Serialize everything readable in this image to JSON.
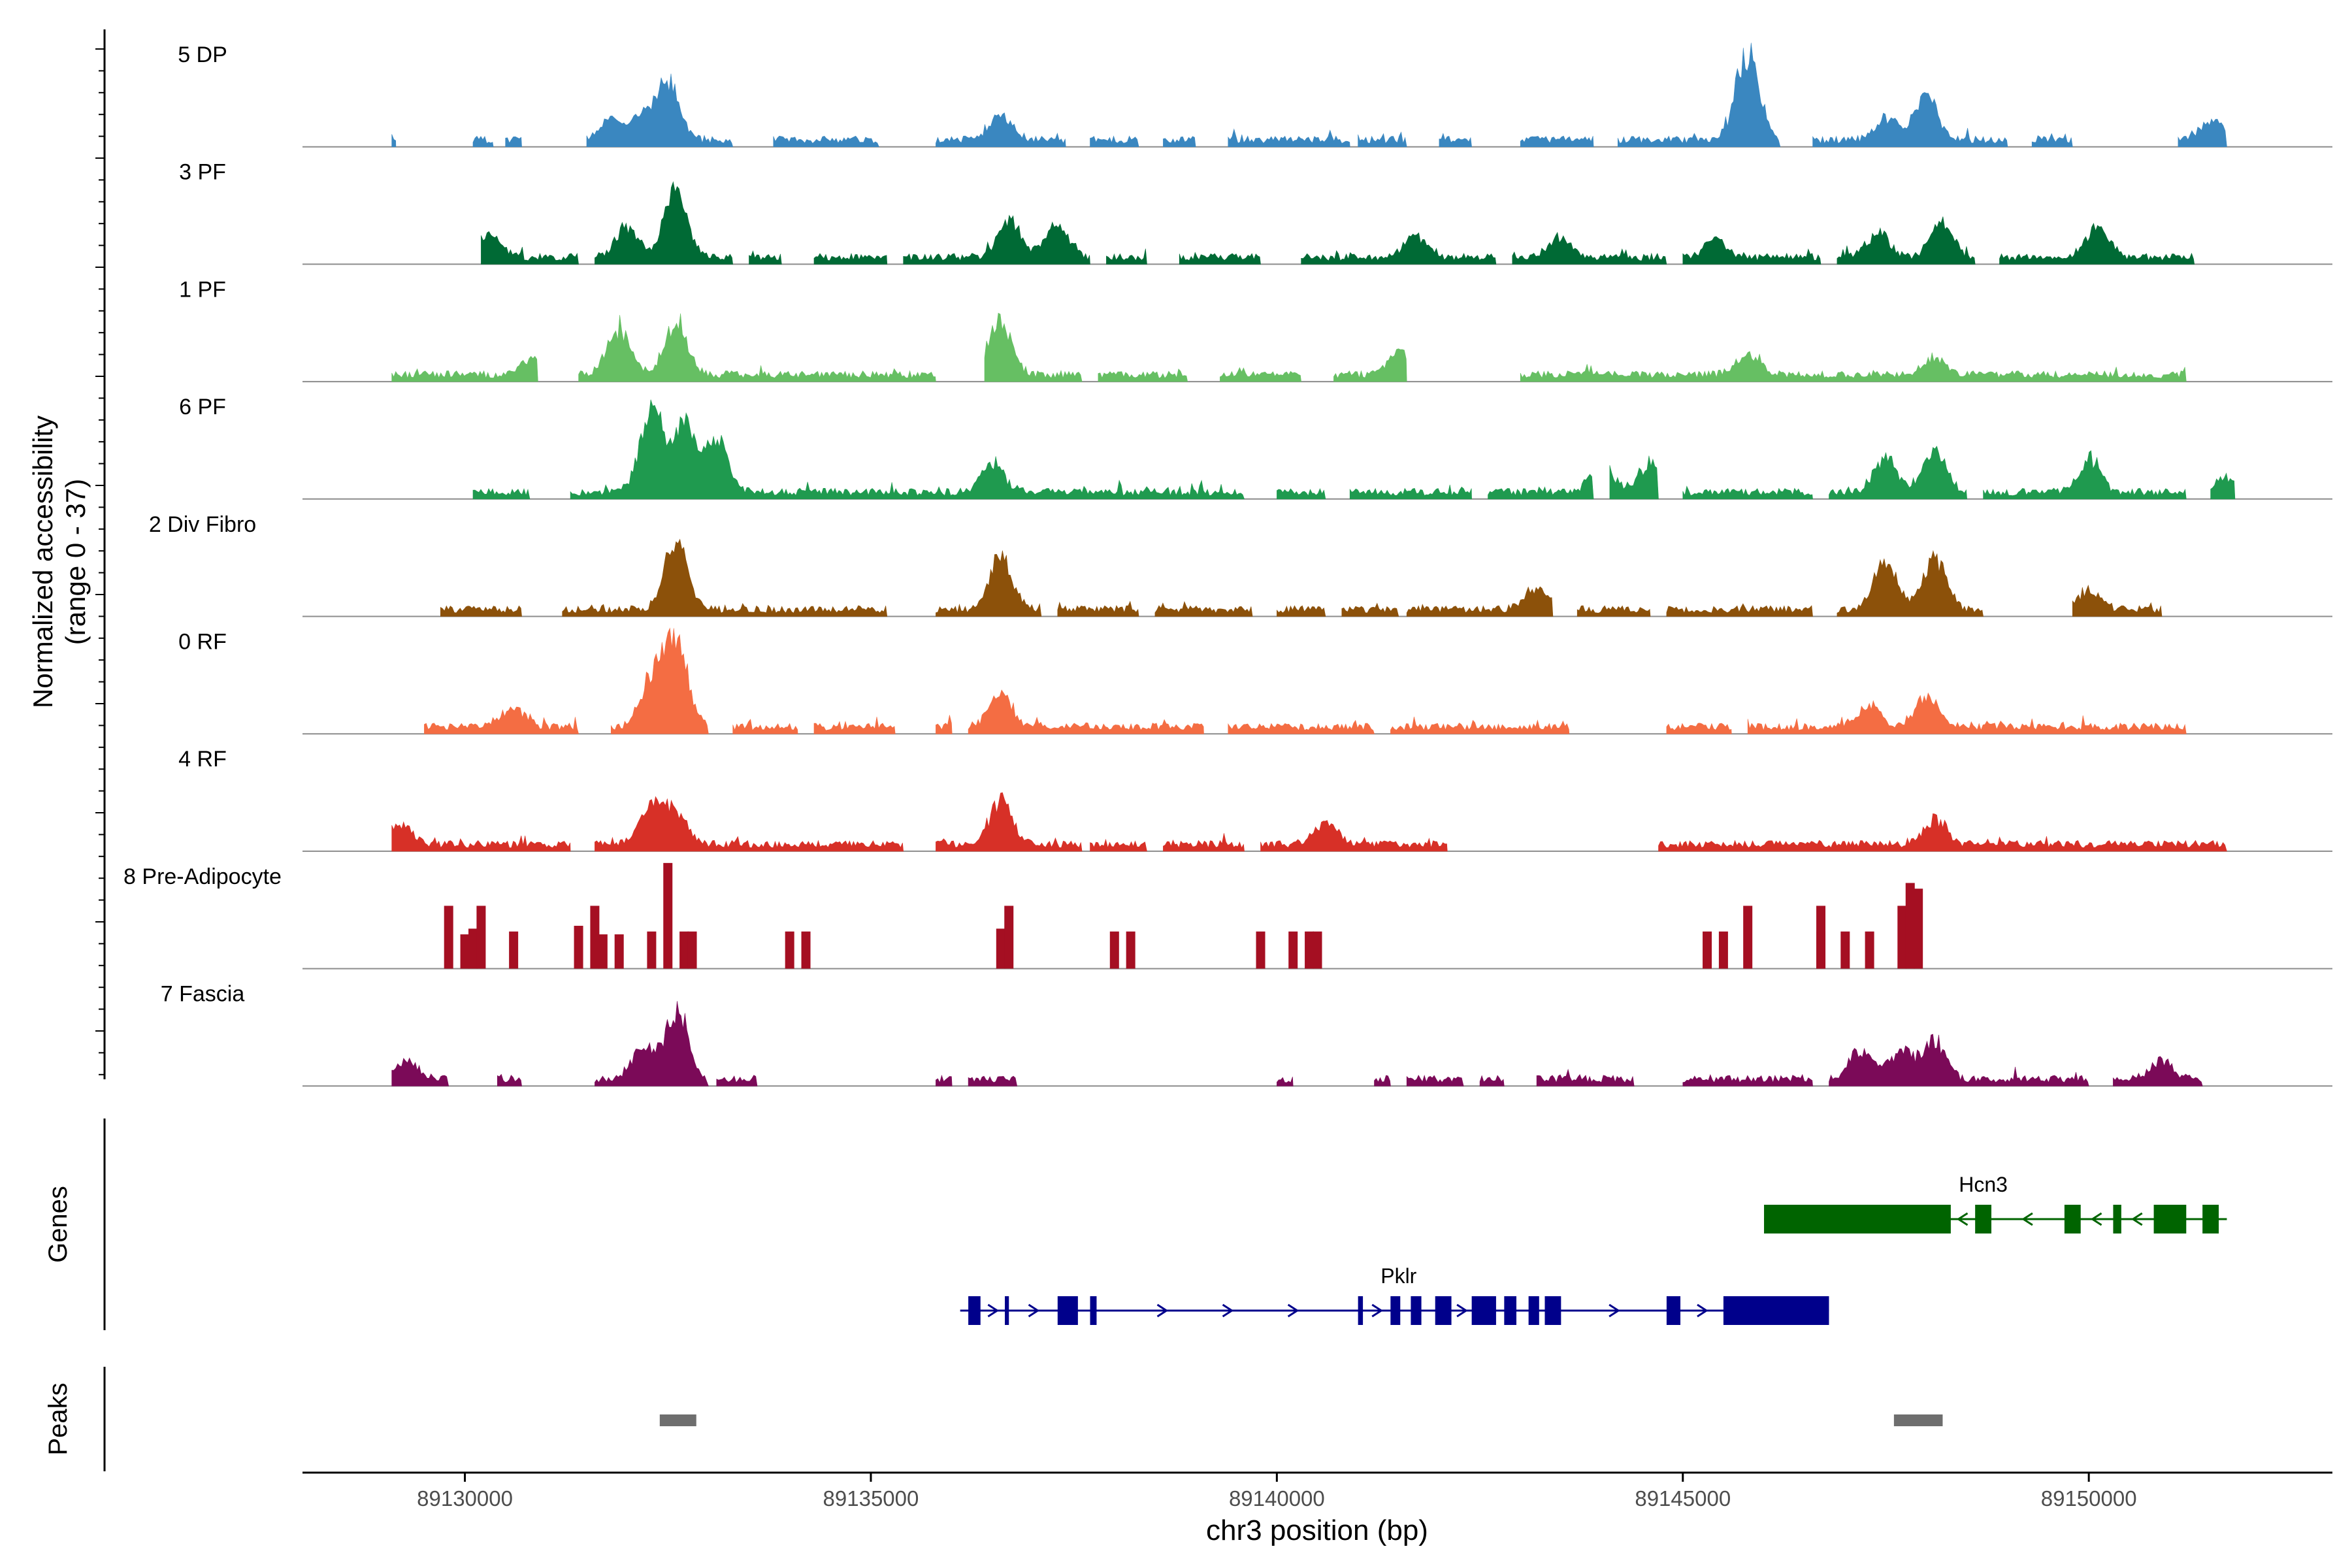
{
  "chart_data": {
    "type": "area",
    "title": "",
    "ylabel_line1": "Normalized accessibility",
    "ylabel_line2": "(range 0 - 37)",
    "xlabel": "chr3 position (bp)",
    "xlim": [
      89128000,
      89153000
    ],
    "xticks": [
      89130000,
      89135000,
      89140000,
      89145000,
      89150000
    ],
    "xtick_labels": [
      "89130000",
      "89135000",
      "89140000",
      "89145000",
      "89150000"
    ],
    "ylim": [
      0,
      37
    ],
    "tracks": [
      {
        "name": "5 DP",
        "color": "#3a87c0",
        "style": "smooth",
        "peaks": [
          [
            89131800,
            9
          ],
          [
            89132200,
            10
          ],
          [
            89132500,
            23
          ],
          [
            89136600,
            11
          ],
          [
            89145800,
            37
          ],
          [
            89147500,
            9
          ],
          [
            89148000,
            18
          ],
          [
            89151500,
            8
          ]
        ],
        "islands": [
          [
            89129100,
            89129150
          ],
          [
            89130100,
            89130350
          ],
          [
            89130500,
            89130700
          ],
          [
            89131500,
            89133300
          ],
          [
            89133800,
            89135100
          ],
          [
            89135800,
            89137400
          ],
          [
            89137700,
            89138300
          ],
          [
            89138600,
            89139000
          ],
          [
            89139400,
            89140900
          ],
          [
            89141000,
            89141600
          ],
          [
            89142000,
            89142400
          ],
          [
            89143000,
            89143900
          ],
          [
            89144200,
            89146200
          ],
          [
            89146600,
            89149000
          ],
          [
            89149300,
            89149800
          ],
          [
            89151100,
            89151700
          ]
        ]
      },
      {
        "name": "3 PF",
        "color": "#006a35",
        "style": "smooth",
        "peaks": [
          [
            89130300,
            10
          ],
          [
            89132000,
            13
          ],
          [
            89132600,
            28
          ],
          [
            89136700,
            15
          ],
          [
            89137300,
            13
          ],
          [
            89141700,
            9
          ],
          [
            89143500,
            8
          ],
          [
            89145400,
            8
          ],
          [
            89147400,
            10
          ],
          [
            89148200,
            14
          ],
          [
            89150100,
            13
          ]
        ],
        "islands": [
          [
            89130200,
            89131400
          ],
          [
            89131600,
            89133300
          ],
          [
            89133500,
            89133900
          ],
          [
            89134300,
            89135200
          ],
          [
            89135400,
            89137700
          ],
          [
            89137900,
            89138400
          ],
          [
            89138800,
            89139800
          ],
          [
            89140300,
            89142700
          ],
          [
            89142900,
            89144800
          ],
          [
            89145000,
            89146700
          ],
          [
            89146900,
            89148600
          ],
          [
            89148900,
            89151300
          ]
        ]
      },
      {
        "name": "1 PF",
        "color": "#66bf63",
        "style": "smooth",
        "peaks": [
          [
            89130800,
            7
          ],
          [
            89131900,
            20
          ],
          [
            89132600,
            22
          ],
          [
            89136600,
            22
          ],
          [
            89141500,
            10
          ],
          [
            89145800,
            9
          ],
          [
            89148100,
            7
          ]
        ],
        "islands": [
          [
            89129100,
            89130900
          ],
          [
            89131400,
            89135800
          ],
          [
            89136400,
            89137600
          ],
          [
            89137800,
            89138900
          ],
          [
            89139300,
            89140300
          ],
          [
            89140700,
            89141600
          ],
          [
            89143000,
            89151200
          ]
        ]
      },
      {
        "name": "6 PF",
        "color": "#1f9a4f",
        "style": "smooth",
        "peaks": [
          [
            89132300,
            33
          ],
          [
            89132700,
            27
          ],
          [
            89133100,
            23
          ],
          [
            89136500,
            12
          ],
          [
            89144000,
            12
          ],
          [
            89144600,
            12
          ],
          [
            89147500,
            15
          ],
          [
            89148100,
            18
          ],
          [
            89150000,
            14
          ],
          [
            89151700,
            6
          ]
        ],
        "islands": [
          [
            89130100,
            89130800
          ],
          [
            89131300,
            89139600
          ],
          [
            89140000,
            89140600
          ],
          [
            89140900,
            89142400
          ],
          [
            89142600,
            89143900
          ],
          [
            89144100,
            89144700
          ],
          [
            89145000,
            89146600
          ],
          [
            89146800,
            89148500
          ],
          [
            89148700,
            89151200
          ],
          [
            89151500,
            89151800
          ]
        ]
      },
      {
        "name": "2 Div Fibro",
        "color": "#8c510a",
        "style": "smooth",
        "peaks": [
          [
            89132600,
            28
          ],
          [
            89136600,
            22
          ],
          [
            89143200,
            9
          ],
          [
            89147500,
            20
          ],
          [
            89148100,
            22
          ],
          [
            89150000,
            8
          ]
        ],
        "islands": [
          [
            89129700,
            89130700
          ],
          [
            89131200,
            89135200
          ],
          [
            89135800,
            89137100
          ],
          [
            89137300,
            89138300
          ],
          [
            89138500,
            89139700
          ],
          [
            89140000,
            89140600
          ],
          [
            89140800,
            89141500
          ],
          [
            89141600,
            89143400
          ],
          [
            89143700,
            89144600
          ],
          [
            89144800,
            89146600
          ],
          [
            89146900,
            89148700
          ],
          [
            89149800,
            89150900
          ]
        ]
      },
      {
        "name": "0 RF",
        "color": "#f46d43",
        "style": "smooth",
        "peaks": [
          [
            89130600,
            8
          ],
          [
            89132300,
            20
          ],
          [
            89132600,
            37
          ],
          [
            89136600,
            14
          ],
          [
            89147300,
            9
          ],
          [
            89148000,
            13
          ]
        ],
        "islands": [
          [
            89129500,
            89131400
          ],
          [
            89131800,
            89133000
          ],
          [
            89133300,
            89134100
          ],
          [
            89134300,
            89135300
          ],
          [
            89135800,
            89136000
          ],
          [
            89136200,
            89139100
          ],
          [
            89139400,
            89141200
          ],
          [
            89141400,
            89143600
          ],
          [
            89144800,
            89145600
          ],
          [
            89145800,
            89151200
          ]
        ]
      },
      {
        "name": "4 RF",
        "color": "#d73027",
        "style": "smooth",
        "peaks": [
          [
            89129200,
            8
          ],
          [
            89132300,
            16
          ],
          [
            89132600,
            13
          ],
          [
            89136600,
            19
          ],
          [
            89140600,
            9
          ],
          [
            89148100,
            10
          ]
        ],
        "islands": [
          [
            89129100,
            89131300
          ],
          [
            89131600,
            89135400
          ],
          [
            89135800,
            89137600
          ],
          [
            89137700,
            89138400
          ],
          [
            89138600,
            89139600
          ],
          [
            89139800,
            89142100
          ],
          [
            89144700,
            89151700
          ]
        ]
      },
      {
        "name": "8 Pre-Adipocyte",
        "color": "#a50f22",
        "style": "bars",
        "bars": [
          [
            89129800,
            22
          ],
          [
            89130000,
            12
          ],
          [
            89130100,
            14
          ],
          [
            89130200,
            22
          ],
          [
            89130600,
            13
          ],
          [
            89131400,
            15
          ],
          [
            89131600,
            22
          ],
          [
            89131700,
            12
          ],
          [
            89131900,
            12
          ],
          [
            89132300,
            13
          ],
          [
            89132500,
            37
          ],
          [
            89132700,
            13
          ],
          [
            89132800,
            13
          ],
          [
            89134000,
            13
          ],
          [
            89134200,
            13
          ],
          [
            89136600,
            14
          ],
          [
            89136700,
            22
          ],
          [
            89138000,
            13
          ],
          [
            89138200,
            13
          ],
          [
            89139800,
            13
          ],
          [
            89140200,
            13
          ],
          [
            89140400,
            13
          ],
          [
            89140500,
            13
          ],
          [
            89145300,
            13
          ],
          [
            89145500,
            13
          ],
          [
            89145800,
            22
          ],
          [
            89146700,
            13
          ],
          [
            89146700,
            22
          ],
          [
            89147000,
            13
          ],
          [
            89147300,
            13
          ],
          [
            89147700,
            22
          ],
          [
            89147800,
            30
          ],
          [
            89147900,
            28
          ]
        ]
      },
      {
        "name": "7 Fascia",
        "color": "#7b0a58",
        "style": "smooth",
        "peaks": [
          [
            89129300,
            7
          ],
          [
            89132200,
            14
          ],
          [
            89132600,
            27
          ],
          [
            89147200,
            13
          ],
          [
            89147700,
            12
          ],
          [
            89148100,
            16
          ],
          [
            89150900,
            8
          ]
        ],
        "islands": [
          [
            89129100,
            89129800
          ],
          [
            89130400,
            89130700
          ],
          [
            89131600,
            89133000
          ],
          [
            89133100,
            89133600
          ],
          [
            89135800,
            89136000
          ],
          [
            89136200,
            89136800
          ],
          [
            89140000,
            89140200
          ],
          [
            89141200,
            89141400
          ],
          [
            89141600,
            89142300
          ],
          [
            89142500,
            89142800
          ],
          [
            89143200,
            89144400
          ],
          [
            89145000,
            89146600
          ],
          [
            89146800,
            89150000
          ],
          [
            89150300,
            89151400
          ]
        ]
      }
    ],
    "genes": [
      {
        "name": "Hcn3",
        "color": "#006400",
        "strand": "-",
        "start": 89146000,
        "end": 89151700,
        "exons": [
          [
            89146000,
            89148300
          ],
          [
            89148600,
            89148800
          ],
          [
            89149700,
            89149900
          ],
          [
            89150300,
            89150400
          ],
          [
            89150800,
            89151200
          ],
          [
            89151400,
            89151600
          ]
        ]
      },
      {
        "name": "Pklr",
        "color": "#00008b",
        "strand": "+",
        "start": 89136100,
        "end": 89146800,
        "exons": [
          [
            89136200,
            89136350
          ],
          [
            89136650,
            89136700
          ],
          [
            89137300,
            89137550
          ],
          [
            89137700,
            89137780
          ],
          [
            89141000,
            89141060
          ],
          [
            89141400,
            89141520
          ],
          [
            89141650,
            89141780
          ],
          [
            89141950,
            89142150
          ],
          [
            89142400,
            89142700
          ],
          [
            89142800,
            89142950
          ],
          [
            89143100,
            89143230
          ],
          [
            89143300,
            89143500
          ],
          [
            89144800,
            89144970
          ],
          [
            89145500,
            89146800
          ]
        ]
      }
    ],
    "genes_label": "Genes",
    "peaks_label": "Peaks",
    "peak_regions": [
      [
        89132400,
        89132850
      ],
      [
        89147600,
        89148200
      ]
    ]
  }
}
